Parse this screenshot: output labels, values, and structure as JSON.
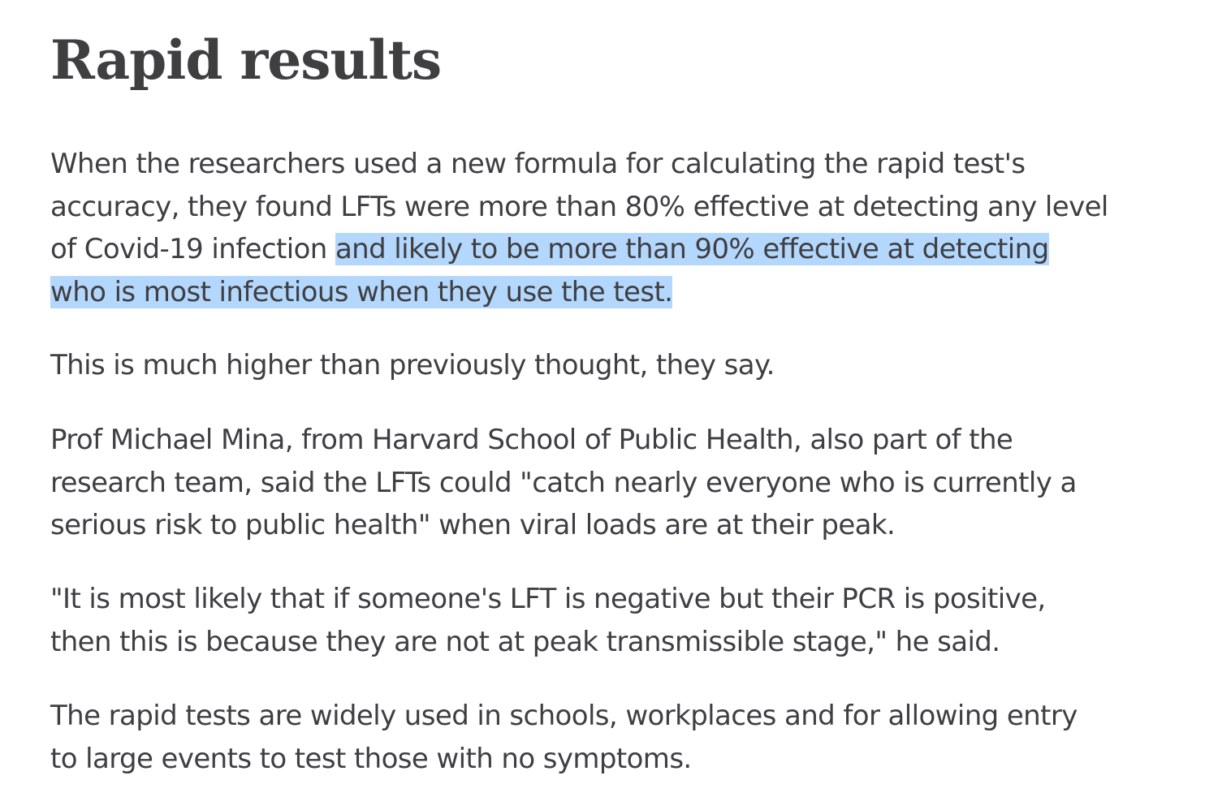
{
  "heading": "Rapid results",
  "paragraphs": {
    "p1": {
      "line1": "When the researchers used a new formula for calculating the rapid test's",
      "line2": "accuracy, they found LFTs were more than 80% effective at detecting any level",
      "line3_plain": "of Covid-19 infection ",
      "line3_highlight": "and likely to be more than 90% effective at detecting",
      "line4_highlight": "who is most infectious when they use the test."
    },
    "p2": {
      "line1": "This is much higher than previously thought, they say."
    },
    "p3": {
      "line1": "Prof Michael Mina, from Harvard School of Public Health, also part of the",
      "line2": "research team, said the LFTs could \"catch nearly everyone who is currently a",
      "line3": "serious risk to public health\" when viral loads are at their peak."
    },
    "p4": {
      "line1": "\"It is most likely that if someone's LFT is negative but their PCR is positive,",
      "line2": "then this is because they are not at peak transmissible stage,\" he said."
    },
    "p5": {
      "line1": "The rapid tests are widely used in schools, workplaces and for allowing entry",
      "line2": "to large events to test those with no symptoms."
    }
  },
  "colors": {
    "text": "#3f3f42",
    "selection_highlight": "#b3d7fd",
    "background": "#ffffff"
  }
}
